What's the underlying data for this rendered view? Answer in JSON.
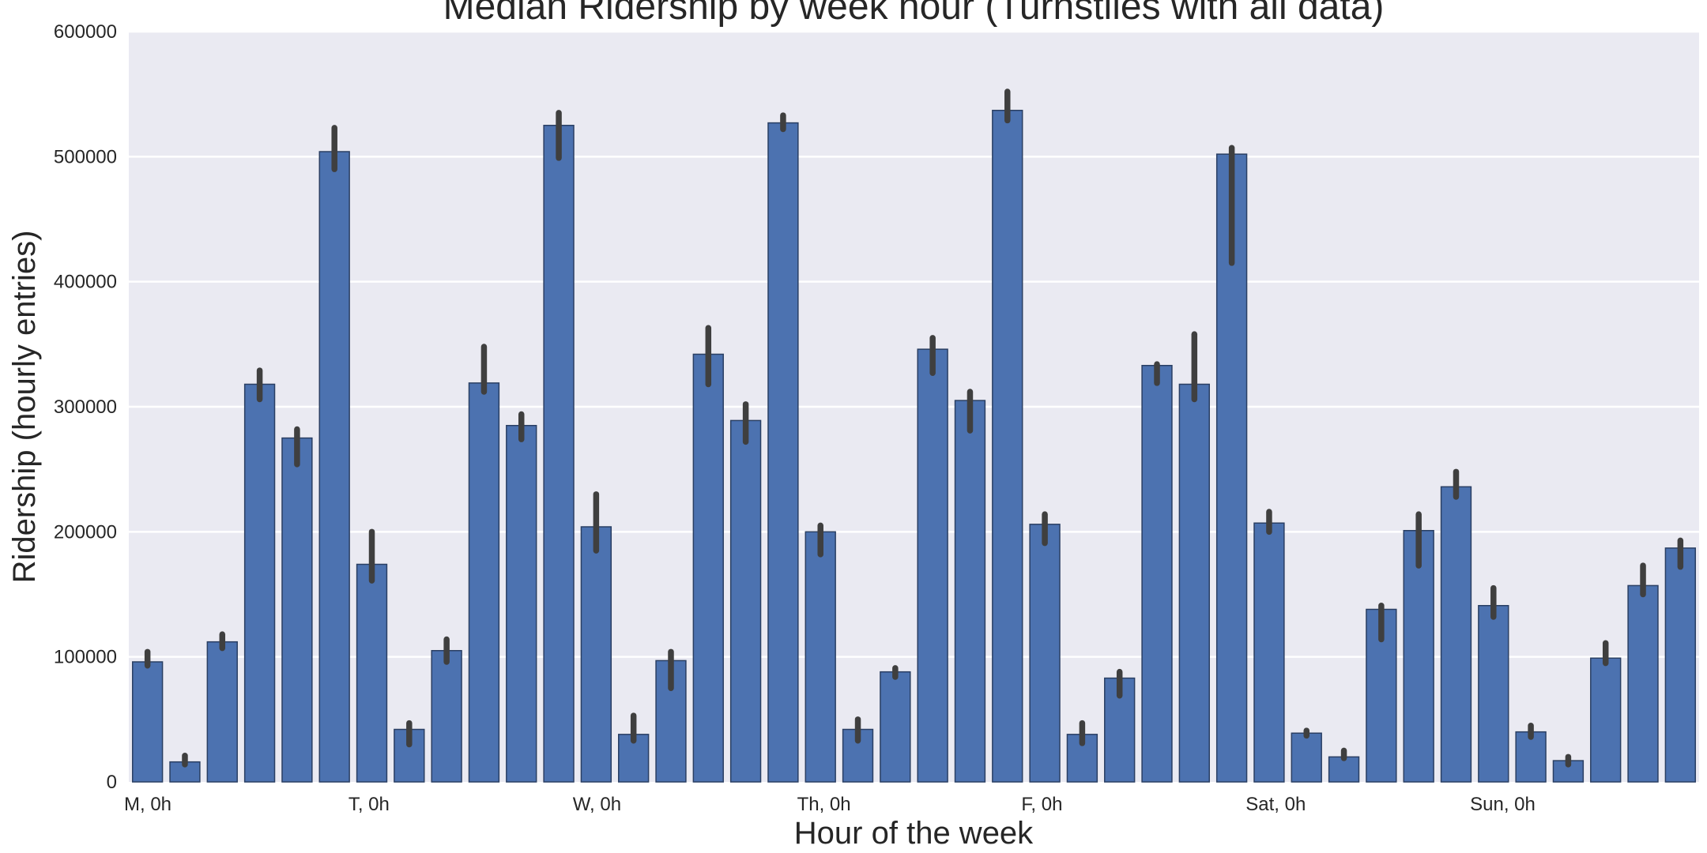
{
  "chart_data": {
    "type": "bar",
    "title": "Median Ridership by week hour (Turnstiles with all data)",
    "xlabel": "Hour of the week",
    "ylabel": "Ridership (hourly entries)",
    "ylim": [
      0,
      600000
    ],
    "yticks": [
      0,
      100000,
      200000,
      300000,
      400000,
      500000,
      600000
    ],
    "ytick_labels": [
      "0",
      "100000",
      "200000",
      "300000",
      "400000",
      "500000",
      "600000"
    ],
    "xtick_labels": [
      {
        "index": 0,
        "label": "M, 0h"
      },
      {
        "index": 6,
        "label": "T, 0h"
      },
      {
        "index": 12,
        "label": "W, 0h"
      },
      {
        "index": 18,
        "label": "Th, 0h"
      },
      {
        "index": 24,
        "label": "F, 0h"
      },
      {
        "index": 30,
        "label": "Sat, 0h"
      },
      {
        "index": 36,
        "label": "Sun, 0h"
      }
    ],
    "grid": true,
    "bar_color": "#4c72b0",
    "error_color": "#3f3f3f",
    "background_color": "#eaeaf2",
    "values": [
      96000,
      16000,
      112000,
      318000,
      275000,
      504000,
      174000,
      42000,
      105000,
      319000,
      285000,
      525000,
      204000,
      38000,
      97000,
      342000,
      289000,
      527000,
      200000,
      42000,
      88000,
      346000,
      305000,
      537000,
      206000,
      38000,
      83000,
      333000,
      318000,
      502000,
      207000,
      39000,
      20000,
      138000,
      201000,
      236000,
      141000,
      40000,
      17000,
      99000,
      157000,
      187000
    ],
    "errors": [
      [
        93000,
        104000
      ],
      [
        14000,
        21000
      ],
      [
        107000,
        118000
      ],
      [
        306000,
        329000
      ],
      [
        254000,
        282000
      ],
      [
        490000,
        523000
      ],
      [
        161000,
        200000
      ],
      [
        30000,
        47000
      ],
      [
        96000,
        114000
      ],
      [
        312000,
        348000
      ],
      [
        274000,
        294000
      ],
      [
        499000,
        535000
      ],
      [
        185000,
        230000
      ],
      [
        33000,
        53000
      ],
      [
        75000,
        104000
      ],
      [
        318000,
        363000
      ],
      [
        272000,
        302000
      ],
      [
        522000,
        533000
      ],
      [
        182000,
        205000
      ],
      [
        33000,
        50000
      ],
      [
        84000,
        91000
      ],
      [
        327000,
        355000
      ],
      [
        281000,
        312000
      ],
      [
        529000,
        552000
      ],
      [
        191000,
        214000
      ],
      [
        31000,
        47000
      ],
      [
        69000,
        88000
      ],
      [
        319000,
        334000
      ],
      [
        306000,
        358000
      ],
      [
        415000,
        507000
      ],
      [
        200000,
        216000
      ],
      [
        37000,
        41000
      ],
      [
        19000,
        25000
      ],
      [
        114000,
        141000
      ],
      [
        173000,
        214000
      ],
      [
        228000,
        248000
      ],
      [
        132000,
        155000
      ],
      [
        36000,
        45000
      ],
      [
        14000,
        20000
      ],
      [
        95000,
        111000
      ],
      [
        150000,
        173000
      ],
      [
        172000,
        193000
      ]
    ]
  }
}
